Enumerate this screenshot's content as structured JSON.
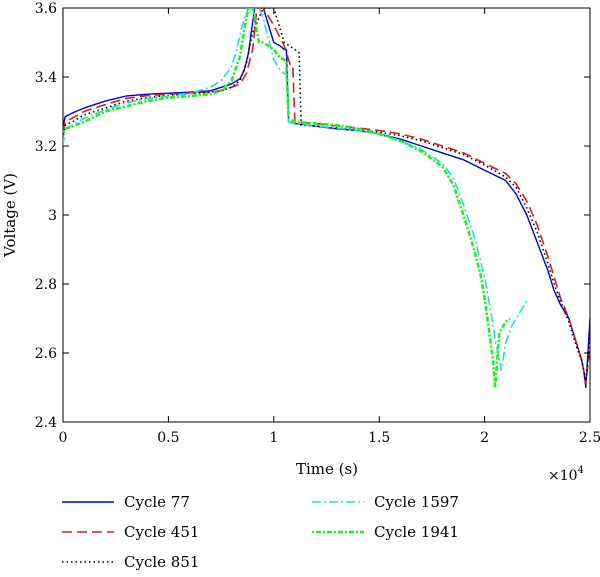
{
  "chart_data": {
    "type": "line",
    "title": "",
    "xlabel": "Time (s)",
    "ylabel": "Voltage (V)",
    "x_multiplier_label": "×10",
    "x_multiplier_exponent": "4",
    "xlim": [
      0,
      2.5
    ],
    "ylim": [
      2.4,
      3.6
    ],
    "xticks": [
      0,
      0.5,
      1,
      1.5,
      2,
      2.5
    ],
    "xtick_labels": [
      "0",
      "0.5",
      "1",
      "1.5",
      "2",
      "2.5"
    ],
    "yticks": [
      2.4,
      2.6,
      2.8,
      3.0,
      3.2,
      3.4,
      3.6
    ],
    "ytick_labels": [
      "2.4",
      "2.6",
      "2.8",
      "3",
      "3.2",
      "3.4",
      "3.6"
    ],
    "grid": false,
    "legend_position": "bottom",
    "series": [
      {
        "name": "Cycle 77",
        "color": "#0000cc",
        "dash": "solid",
        "x": [
          0,
          0.01,
          0.05,
          0.1,
          0.2,
          0.3,
          0.4,
          0.5,
          0.6,
          0.7,
          0.75,
          0.8,
          0.84,
          0.86,
          0.88,
          0.9,
          0.91,
          0.93,
          0.95,
          1.0,
          1.03,
          1.05,
          1.06,
          1.07,
          1.1,
          1.2,
          1.3,
          1.4,
          1.5,
          1.6,
          1.7,
          1.8,
          1.9,
          2.0,
          2.1,
          2.15,
          2.2,
          2.25,
          2.3,
          2.33,
          2.36,
          2.38,
          2.4,
          2.42,
          2.44,
          2.46,
          2.47,
          2.48,
          2.5,
          2.55,
          2.6,
          2.63
        ],
        "y": [
          3.255,
          3.285,
          3.297,
          3.31,
          3.33,
          3.345,
          3.35,
          3.353,
          3.356,
          3.36,
          3.37,
          3.38,
          3.395,
          3.42,
          3.47,
          3.56,
          3.6,
          3.6,
          3.6,
          3.5,
          3.49,
          3.48,
          3.48,
          3.27,
          3.265,
          3.257,
          3.25,
          3.245,
          3.235,
          3.22,
          3.2,
          3.18,
          3.16,
          3.13,
          3.1,
          3.06,
          3.0,
          2.92,
          2.84,
          2.78,
          2.74,
          2.72,
          2.7,
          2.66,
          2.62,
          2.58,
          2.55,
          2.5,
          2.7,
          2.75,
          2.755,
          2.75
        ]
      },
      {
        "name": "Cycle 451",
        "color": "#cc2222",
        "dash": "dashed",
        "x": [
          0,
          0.01,
          0.05,
          0.1,
          0.2,
          0.3,
          0.4,
          0.5,
          0.6,
          0.7,
          0.75,
          0.8,
          0.84,
          0.87,
          0.9,
          0.92,
          0.93,
          0.95,
          1.0,
          1.05,
          1.08,
          1.09,
          1.1,
          1.2,
          1.3,
          1.4,
          1.5,
          1.6,
          1.7,
          1.8,
          1.9,
          2.0,
          2.1,
          2.15,
          2.2,
          2.25,
          2.3,
          2.33,
          2.36,
          2.38,
          2.4,
          2.42,
          2.44,
          2.46,
          2.47,
          2.48,
          2.5,
          2.55,
          2.6,
          2.63
        ],
        "y": [
          3.24,
          3.27,
          3.283,
          3.3,
          3.32,
          3.338,
          3.346,
          3.35,
          3.354,
          3.357,
          3.36,
          3.37,
          3.38,
          3.41,
          3.48,
          3.6,
          3.6,
          3.6,
          3.55,
          3.49,
          3.43,
          3.43,
          3.27,
          3.265,
          3.258,
          3.252,
          3.245,
          3.235,
          3.22,
          3.2,
          3.18,
          3.15,
          3.12,
          3.09,
          3.04,
          2.97,
          2.88,
          2.82,
          2.76,
          2.73,
          2.7,
          2.66,
          2.62,
          2.58,
          2.55,
          2.51,
          2.62,
          2.7,
          2.73,
          2.74
        ]
      },
      {
        "name": "Cycle 851",
        "color": "#000000",
        "dash": "dotted",
        "x": [
          0,
          0.01,
          0.05,
          0.1,
          0.2,
          0.3,
          0.4,
          0.5,
          0.6,
          0.7,
          0.75,
          0.8,
          0.84,
          0.87,
          0.9,
          0.95,
          1.0,
          1.05,
          1.1,
          1.12,
          1.13,
          1.2,
          1.3,
          1.4,
          1.5,
          1.6,
          1.7,
          1.8,
          1.9,
          2.0,
          2.1,
          2.15,
          2.2,
          2.25,
          2.3,
          2.33,
          2.36,
          2.38,
          2.4,
          2.42,
          2.44,
          2.46,
          2.47,
          2.48,
          2.5,
          2.55,
          2.6,
          2.63
        ],
        "y": [
          3.22,
          3.26,
          3.272,
          3.29,
          3.31,
          3.33,
          3.34,
          3.347,
          3.352,
          3.356,
          3.36,
          3.37,
          3.39,
          3.44,
          3.53,
          3.6,
          3.6,
          3.5,
          3.48,
          3.47,
          3.26,
          3.258,
          3.252,
          3.247,
          3.24,
          3.23,
          3.215,
          3.195,
          3.175,
          3.145,
          3.11,
          3.08,
          3.02,
          2.95,
          2.86,
          2.8,
          2.75,
          2.72,
          2.69,
          2.65,
          2.61,
          2.58,
          2.55,
          2.52,
          2.64,
          2.71,
          2.74,
          2.75
        ]
      },
      {
        "name": "Cycle 1597",
        "color": "#22dddd",
        "dash": "dashdot",
        "x": [
          0,
          0.01,
          0.05,
          0.1,
          0.2,
          0.3,
          0.4,
          0.5,
          0.6,
          0.7,
          0.75,
          0.8,
          0.82,
          0.85,
          0.88,
          0.9,
          0.93,
          0.95,
          1.0,
          1.03,
          1.05,
          1.06,
          1.07,
          1.1,
          1.2,
          1.3,
          1.4,
          1.5,
          1.6,
          1.7,
          1.8,
          1.85,
          1.9,
          1.95,
          2.0,
          2.03,
          2.05,
          2.07,
          2.08,
          2.1,
          2.13,
          2.17,
          2.2
        ],
        "y": [
          3.2,
          3.25,
          3.262,
          3.28,
          3.305,
          3.325,
          3.338,
          3.345,
          3.352,
          3.37,
          3.39,
          3.43,
          3.47,
          3.55,
          3.6,
          3.6,
          3.6,
          3.57,
          3.45,
          3.42,
          3.41,
          3.41,
          3.27,
          3.265,
          3.258,
          3.252,
          3.245,
          3.235,
          3.215,
          3.19,
          3.15,
          3.11,
          3.03,
          2.94,
          2.82,
          2.72,
          2.64,
          2.58,
          2.55,
          2.63,
          2.68,
          2.72,
          2.75
        ]
      },
      {
        "name": "Cycle 1941",
        "color": "#22ee22",
        "dash": "dotdash-heavy",
        "x": [
          0,
          0.01,
          0.05,
          0.1,
          0.2,
          0.3,
          0.4,
          0.5,
          0.6,
          0.7,
          0.75,
          0.8,
          0.84,
          0.86,
          0.88,
          0.9,
          0.93,
          0.95,
          1.0,
          1.03,
          1.05,
          1.06,
          1.07,
          1.1,
          1.2,
          1.3,
          1.4,
          1.5,
          1.6,
          1.7,
          1.8,
          1.85,
          1.9,
          1.95,
          1.98,
          2.0,
          2.02,
          2.04,
          2.05,
          2.07,
          2.1,
          2.12
        ],
        "y": [
          3.24,
          3.25,
          3.258,
          3.27,
          3.3,
          3.315,
          3.33,
          3.34,
          3.345,
          3.35,
          3.36,
          3.39,
          3.46,
          3.54,
          3.6,
          3.6,
          3.5,
          3.5,
          3.48,
          3.455,
          3.45,
          3.44,
          3.28,
          3.27,
          3.265,
          3.26,
          3.25,
          3.235,
          3.215,
          3.185,
          3.14,
          3.09,
          3.0,
          2.9,
          2.83,
          2.76,
          2.67,
          2.58,
          2.5,
          2.66,
          2.69,
          2.7
        ]
      }
    ]
  }
}
